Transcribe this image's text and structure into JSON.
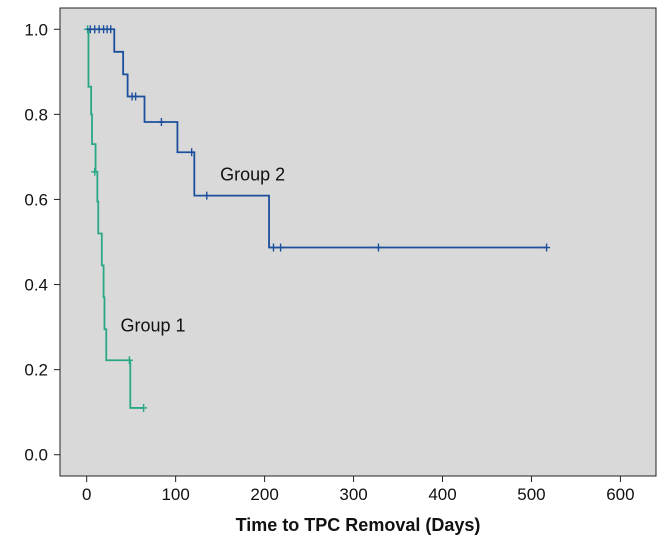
{
  "chart_data": {
    "type": "line",
    "subtype": "kaplan-meier survival curve",
    "title": "",
    "xlabel": "Time to TPC Removal (Days)",
    "ylabel": "",
    "xlim": [
      -30,
      640
    ],
    "ylim": [
      -0.05,
      1.05
    ],
    "x_ticks": [
      0,
      100,
      200,
      300,
      400,
      500,
      600
    ],
    "y_ticks": [
      0.0,
      0.2,
      0.4,
      0.6,
      0.8,
      1.0
    ],
    "x_tick_labels": [
      "0",
      "100",
      "200",
      "300",
      "400",
      "500",
      "600"
    ],
    "y_tick_labels": [
      "0.0",
      "0.2",
      "0.4",
      "0.6",
      "0.8",
      "1.0"
    ],
    "grid": false,
    "background_color": "#d9d9d9",
    "series": [
      {
        "name": "Group 1",
        "color": "#2aa886",
        "step_points": [
          [
            0,
            1.0
          ],
          [
            2,
            0.865
          ],
          [
            5,
            0.8
          ],
          [
            6,
            0.73
          ],
          [
            10,
            0.665
          ],
          [
            12,
            0.595
          ],
          [
            13,
            0.52
          ],
          [
            17,
            0.445
          ],
          [
            19,
            0.37
          ],
          [
            20,
            0.295
          ],
          [
            22,
            0.222
          ],
          [
            48,
            0.222
          ],
          [
            49,
            0.11
          ],
          [
            64,
            0.11
          ]
        ],
        "censor_marks": [
          [
            1,
            1.0
          ],
          [
            9,
            0.665
          ],
          [
            48,
            0.222
          ],
          [
            64,
            0.11
          ]
        ],
        "label": "Group 1"
      },
      {
        "name": "Group 2",
        "color": "#1c4f9c",
        "step_points": [
          [
            0,
            1.0
          ],
          [
            31,
            1.0
          ],
          [
            31,
            0.947
          ],
          [
            41,
            0.947
          ],
          [
            41,
            0.894
          ],
          [
            46,
            0.894
          ],
          [
            46,
            0.842
          ],
          [
            65,
            0.842
          ],
          [
            65,
            0.782
          ],
          [
            102,
            0.782
          ],
          [
            102,
            0.711
          ],
          [
            121,
            0.711
          ],
          [
            121,
            0.609
          ],
          [
            205,
            0.609
          ],
          [
            205,
            0.487
          ],
          [
            517,
            0.487
          ]
        ],
        "censor_marks": [
          [
            4,
            1.0
          ],
          [
            9,
            1.0
          ],
          [
            14,
            1.0
          ],
          [
            19,
            1.0
          ],
          [
            23,
            1.0
          ],
          [
            27,
            1.0
          ],
          [
            51,
            0.842
          ],
          [
            55,
            0.842
          ],
          [
            84,
            0.782
          ],
          [
            118,
            0.711
          ],
          [
            135,
            0.609
          ],
          [
            210,
            0.487
          ],
          [
            218,
            0.487
          ],
          [
            328,
            0.487
          ],
          [
            517,
            0.487
          ]
        ],
        "label": "Group 2"
      }
    ],
    "annotations": [
      {
        "text": "Group 1",
        "x": 38,
        "y": 0.29
      },
      {
        "text": "Group 2",
        "x": 150,
        "y": 0.645
      }
    ]
  }
}
